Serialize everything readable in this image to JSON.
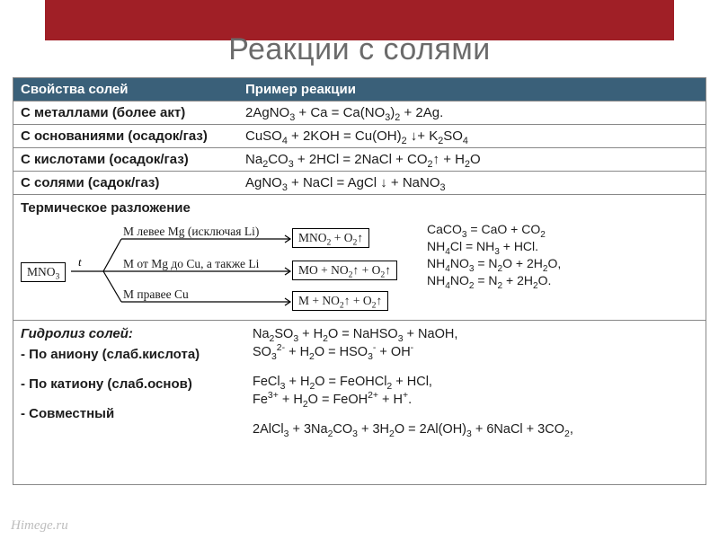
{
  "colors": {
    "banner": "#a01f26",
    "title": "#6b6b6b",
    "table_header_bg": "#3a6079",
    "table_header_fg": "#ffffff",
    "border": "#888888",
    "watermark": "#bdbdbd"
  },
  "title": "Реакции с солями",
  "header": {
    "col1": "Свойства солей",
    "col2": "Пример реакции"
  },
  "rows": [
    {
      "left": "С металлами (более акт)",
      "right_html": "2AgNO<sub>3</sub> + Ca = Ca(NO<sub>3</sub>)<sub>2</sub> + 2Ag."
    },
    {
      "left": "С  основаниями (осадок/газ)",
      "right_html": "CuSO<sub>4</sub> + 2KOH = Cu(OH)<sub>2</sub> ↓+ K<sub>2</sub>SO<sub>4</sub>"
    },
    {
      "left": "С кислотами (осадок/газ)",
      "right_html": "Na<sub>2</sub>CO<sub>3</sub> + 2HCl = 2NaCl + CO<sub>2</sub>↑ + H<sub>2</sub>O"
    },
    {
      "left": "С солями (садок/газ)",
      "right_html": "AgNO<sub>3</sub> + NaCl = AgCl ↓ + NaNO<sub>3</sub>"
    }
  ],
  "thermal": {
    "heading": "Термическое разложение",
    "root_box": "MNO<sub>3</sub>",
    "root_t": "t",
    "branches": [
      {
        "text": "M левее Mg (исключая Li)",
        "box": "MNO<sub>2</sub> + O<sub>2</sub>↑"
      },
      {
        "text": "M от Mg до Cu, а также Li",
        "box": "MO + NO<sub>2</sub>↑ + O<sub>2</sub>↑"
      },
      {
        "text": "M правее Cu",
        "box": "M + NO<sub>2</sub>↑ + O<sub>2</sub>↑"
      }
    ],
    "equations_html": [
      "CaCO<sub>3</sub> = CaO + CO<sub>2</sub>",
      "NH<sub>4</sub>Cl = NH<sub>3</sub> + HCl.",
      "NH<sub>4</sub>NO<sub>3</sub> = N<sub>2</sub>O + 2H<sub>2</sub>O,",
      "NH<sub>4</sub>NO<sub>2</sub> = N<sub>2</sub> + 2H<sub>2</sub>O."
    ]
  },
  "hydrolysis": {
    "heading": "Гидролиз солей:",
    "types": [
      "По аниону (слаб.кислота)",
      "По катиону (слаб.основ)",
      "Совместный"
    ],
    "groups_html": [
      "Na<sub>2</sub>SO<sub>3</sub> + H<sub>2</sub>O = NaHSO<sub>3</sub> + NaOH,<br>SO<sub>3</sub><sup>2-</sup> + H<sub>2</sub>O = HSO<sub>3</sub><sup>-</sup> + OH<sup>-</sup>",
      "FeCl<sub>3</sub> + H<sub>2</sub>O = FeOHCl<sub>2</sub> + HCl,<br>Fe<sup>3+</sup> + H<sub>2</sub>O = FeOH<sup>2+</sup> + H<sup>+</sup>.",
      "2AlCl<sub>3</sub> + 3Na<sub>2</sub>CO<sub>3</sub> + 3H<sub>2</sub>O = 2Al(OH)<sub>3</sub> + 6NaCl + 3CO<sub>2</sub>,"
    ]
  },
  "watermark": "Himege.ru"
}
